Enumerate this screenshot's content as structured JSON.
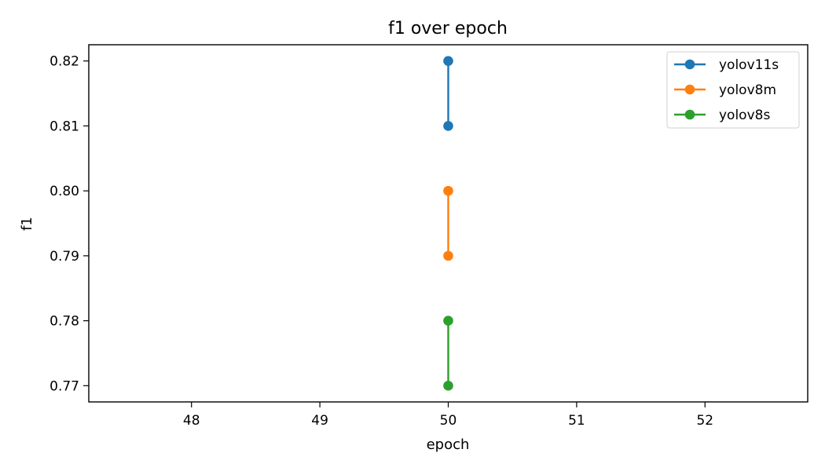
{
  "chart_data": {
    "type": "line",
    "title": "f1 over epoch",
    "xlabel": "epoch",
    "ylabel": "f1",
    "xlim": [
      47.2,
      52.8
    ],
    "ylim": [
      0.7675,
      0.8225
    ],
    "xticks": [
      48,
      49,
      50,
      51,
      52
    ],
    "yticks": [
      0.77,
      0.78,
      0.79,
      0.8,
      0.81,
      0.82
    ],
    "xtick_labels": [
      "48",
      "49",
      "50",
      "51",
      "52"
    ],
    "ytick_labels": [
      "0.77",
      "0.78",
      "0.79",
      "0.80",
      "0.81",
      "0.82"
    ],
    "grid": false,
    "legend_position": "top-right",
    "series": [
      {
        "name": "yolov11s",
        "color": "#1f77b4",
        "x": [
          50,
          50
        ],
        "y": [
          0.82,
          0.81
        ]
      },
      {
        "name": "yolov8m",
        "color": "#ff7f0e",
        "x": [
          50,
          50
        ],
        "y": [
          0.8,
          0.79
        ]
      },
      {
        "name": "yolov8s",
        "color": "#2ca02c",
        "x": [
          50,
          50
        ],
        "y": [
          0.78,
          0.77
        ]
      }
    ]
  }
}
